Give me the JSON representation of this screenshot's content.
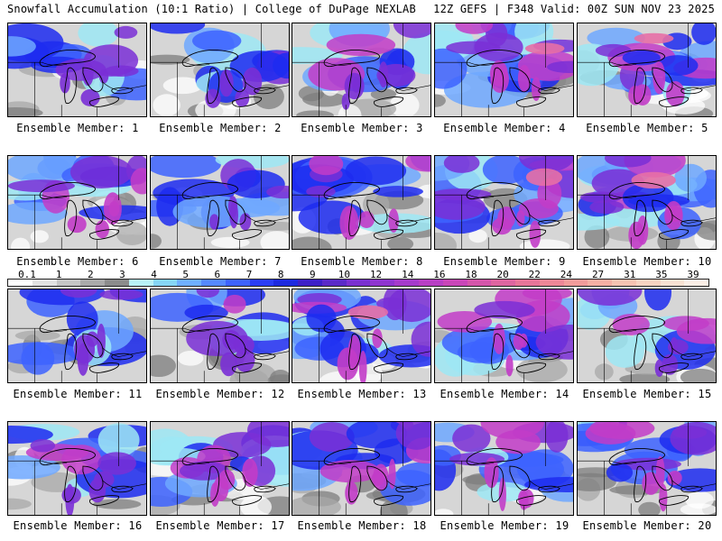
{
  "header": {
    "left": "Snowfall Accumulation (10:1 Ratio) | College of DuPage NEXLAB",
    "right": "12Z GEFS | F348 Valid: 00Z SUN NOV 23 2025"
  },
  "colors": {
    "none": "#ffffff",
    "gray_light": "#d6d6d6",
    "gray_mid": "#a8a8a8",
    "gray_dark": "#7d7d7d",
    "cyan": "#9ee8f5",
    "blue_light": "#6fa8ff",
    "blue": "#3d63ff",
    "blue_dark": "#1d2cf0",
    "purple": "#7a2fd6",
    "magenta": "#c23cc8",
    "pink": "#e76fa6",
    "peach": "#f6b3a6"
  },
  "colorbar": {
    "labels": [
      "0.1",
      "1",
      "2",
      "3",
      "4",
      "5",
      "6",
      "7",
      "8",
      "9",
      "10",
      "12",
      "14",
      "16",
      "18",
      "20",
      "22",
      "24",
      "27",
      "31",
      "35",
      "39"
    ],
    "swatches": [
      "#ffffff",
      "#e2e2e2",
      "#c6c6c6",
      "#aaaaaa",
      "#8c8c8c",
      "#b9f2f7",
      "#86d6f5",
      "#6fb0ff",
      "#5589ff",
      "#3d63ff",
      "#2a3df6",
      "#1d2ae0",
      "#3d20c8",
      "#5a2ac8",
      "#7a30d0",
      "#8f35cf",
      "#a53bcb",
      "#b83fc4",
      "#c946b8",
      "#d455aa",
      "#de65a0",
      "#e77599",
      "#ee8797",
      "#f29c9b",
      "#f5b0a4",
      "#f6c3b2",
      "#f7d4c2",
      "#f8e2d3",
      "#faeee6"
    ]
  },
  "panels": [
    {
      "label": "Ensemble Member: 1",
      "intensity": 0.35
    },
    {
      "label": "Ensemble Member: 2",
      "intensity": 0.3
    },
    {
      "label": "Ensemble Member: 3",
      "intensity": 0.45
    },
    {
      "label": "Ensemble Member: 4",
      "intensity": 0.7
    },
    {
      "label": "Ensemble Member: 5",
      "intensity": 0.7
    },
    {
      "label": "Ensemble Member: 6",
      "intensity": 0.6
    },
    {
      "label": "Ensemble Member: 7",
      "intensity": 0.4
    },
    {
      "label": "Ensemble Member: 8",
      "intensity": 0.55
    },
    {
      "label": "Ensemble Member: 9",
      "intensity": 0.75
    },
    {
      "label": "Ensemble Member: 10",
      "intensity": 0.85
    },
    {
      "label": "Ensemble Member: 11",
      "intensity": 0.3
    },
    {
      "label": "Ensemble Member: 12",
      "intensity": 0.3
    },
    {
      "label": "Ensemble Member: 13",
      "intensity": 0.7
    },
    {
      "label": "Ensemble Member: 14",
      "intensity": 0.6
    },
    {
      "label": "Ensemble Member: 15",
      "intensity": 0.4
    },
    {
      "label": "Ensemble Member: 16",
      "intensity": 0.4
    },
    {
      "label": "Ensemble Member: 17",
      "intensity": 0.65
    },
    {
      "label": "Ensemble Member: 18",
      "intensity": 0.6
    },
    {
      "label": "Ensemble Member: 19",
      "intensity": 0.55
    },
    {
      "label": "Ensemble Member: 20",
      "intensity": 0.65
    }
  ]
}
